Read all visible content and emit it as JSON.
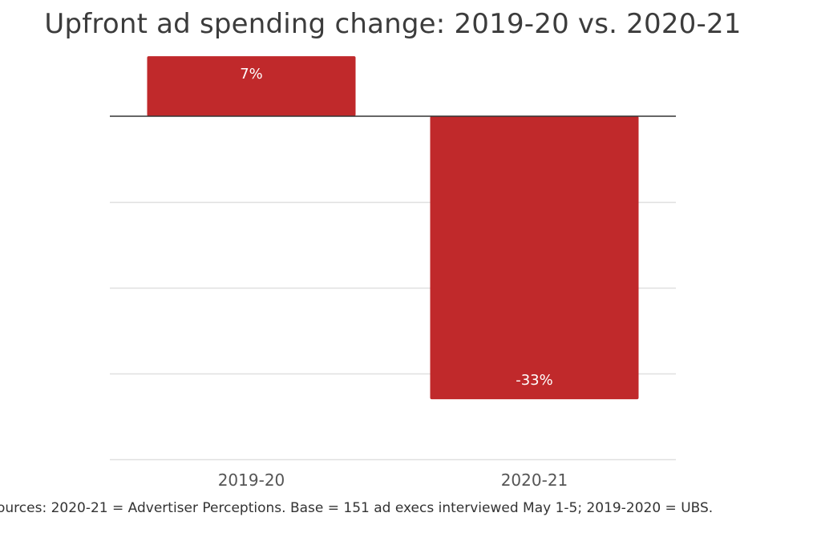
{
  "chart_data": {
    "type": "bar",
    "title": "Upfront ad spending change: 2019-20 vs. 2020-21",
    "categories": [
      "2019-20",
      "2020-21"
    ],
    "values": [
      7,
      -33
    ],
    "data_labels": [
      "7%",
      "-33%"
    ],
    "ylim": [
      -40,
      7
    ],
    "gridlines": [
      -10,
      -20,
      -30,
      -40
    ],
    "grid": true,
    "legend": "none",
    "bar_color": "#c0292b",
    "source": "ources: 2020-21 = Advertiser Perceptions. Base = 151 ad execs interviewed May 1-5; 2019-2020 = UBS."
  }
}
